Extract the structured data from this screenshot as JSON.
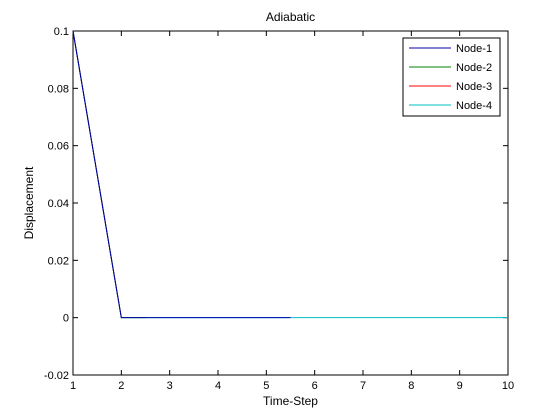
{
  "chart_data": {
    "type": "line",
    "title": "Adiabatic",
    "xlabel": "Time-Step",
    "ylabel": "Displacement",
    "xlim": [
      1,
      10
    ],
    "ylim": [
      -0.02,
      0.1
    ],
    "xticks": [
      "1",
      "2",
      "3",
      "4",
      "5",
      "6",
      "7",
      "8",
      "9",
      "10"
    ],
    "yticks": [
      "-0.02",
      "0",
      "0.02",
      "0.04",
      "0.06",
      "0.08",
      "0.1"
    ],
    "grid": false,
    "legend_position": "top-right",
    "series": [
      {
        "name": "Node-1",
        "color": "#0000aa",
        "x": [
          1,
          2,
          2.5,
          5.5
        ],
        "y": [
          0.1,
          0,
          0,
          0
        ]
      },
      {
        "name": "Node-2",
        "color": "#008000",
        "x": [
          1,
          2,
          2.5
        ],
        "y": [
          0.1,
          0,
          0
        ]
      },
      {
        "name": "Node-3",
        "color": "#ff0000",
        "x": [
          1,
          2
        ],
        "y": [
          0.1,
          0
        ]
      },
      {
        "name": "Node-4",
        "color": "#00bfbf",
        "x": [
          1,
          2,
          10
        ],
        "y": [
          0.1,
          0,
          0
        ]
      }
    ]
  }
}
